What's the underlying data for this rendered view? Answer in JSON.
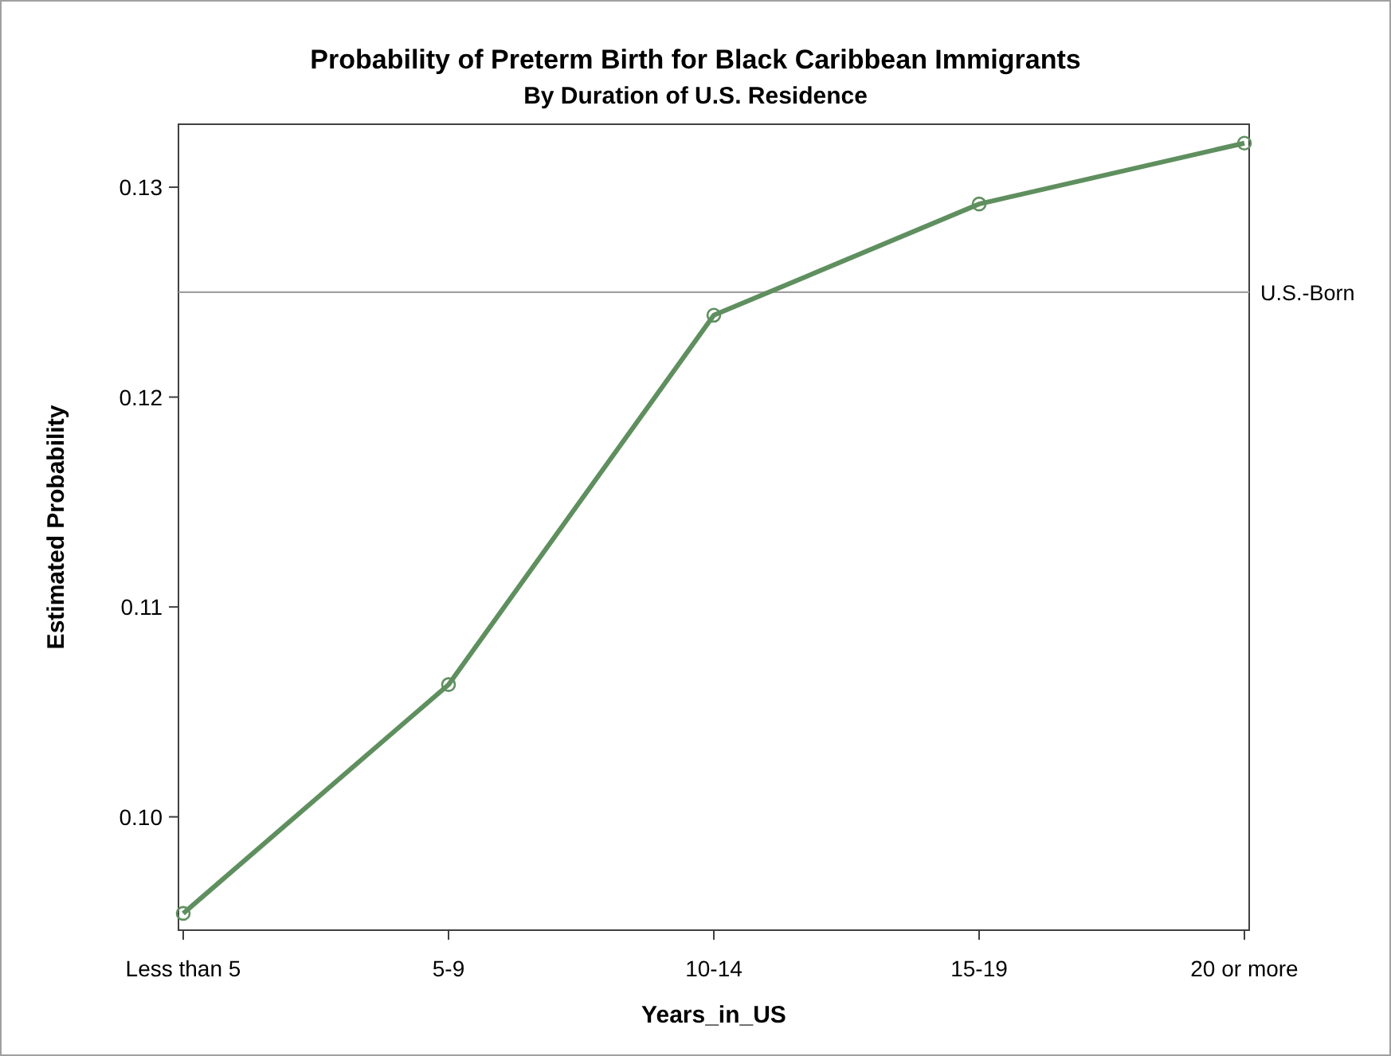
{
  "chart_data": {
    "type": "line",
    "title": "Probability of Preterm Birth for Black Caribbean Immigrants",
    "subtitle": "By Duration of U.S. Residence",
    "xlabel": "Years_in_US",
    "ylabel": "Estimated Probability",
    "categories": [
      "Less than 5",
      "5-9",
      "10-14",
      "15-19",
      "20 or more"
    ],
    "series": [
      {
        "color": "#5f8f5f",
        "values": [
          0.0954,
          0.1063,
          0.1239,
          0.1292,
          0.1321
        ]
      }
    ],
    "ylim": [
      0.0946,
      0.133
    ],
    "yticks": [
      {
        "value": 0.1,
        "label": "0.10"
      },
      {
        "value": 0.11,
        "label": "0.11"
      },
      {
        "value": 0.12,
        "label": "0.12"
      },
      {
        "value": 0.13,
        "label": "0.13"
      }
    ],
    "ref_lines": [
      {
        "axis": "y",
        "value": 0.125,
        "label": "U.S.-Born",
        "color": "#a0a0a0"
      }
    ],
    "grid": false,
    "marker": "circle",
    "line_style": "solid"
  }
}
